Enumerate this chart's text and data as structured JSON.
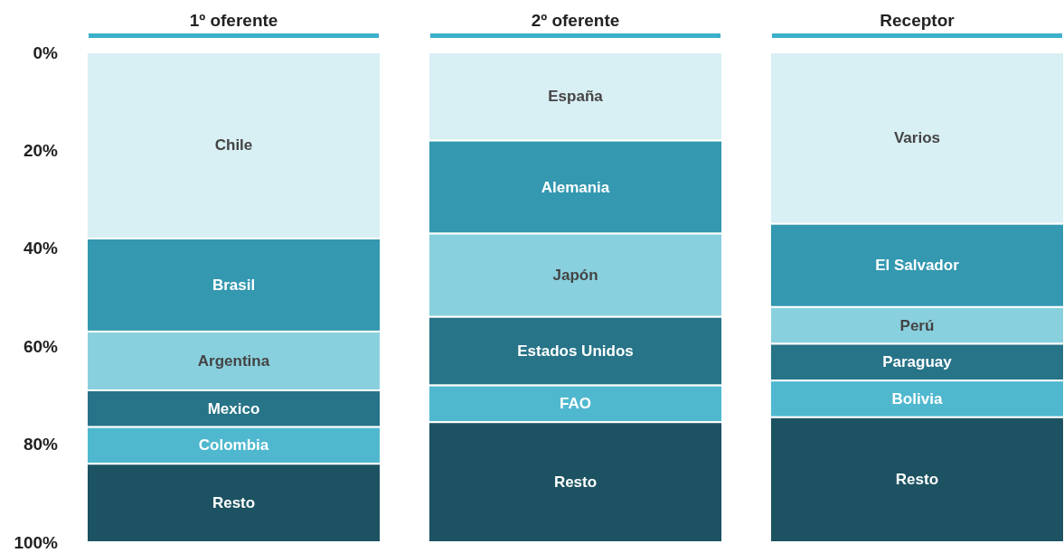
{
  "chart_data": {
    "type": "bar",
    "stacked": true,
    "categories": [
      "1º oferente",
      "2º oferente",
      "Receptor"
    ],
    "ylim": [
      100,
      0
    ],
    "yticks": [
      {
        "value": 0,
        "label": "0%"
      },
      {
        "value": 20,
        "label": "20%"
      },
      {
        "value": 40,
        "label": "40%"
      },
      {
        "value": 60,
        "label": "60%"
      },
      {
        "value": 80,
        "label": "80%"
      },
      {
        "value": 100,
        "label": "100%"
      }
    ],
    "grid": false,
    "series": [
      {
        "color": "#d8eff3",
        "values": [
          38,
          18,
          35
        ],
        "value_labels": [
          "Chile",
          "España",
          "Varios"
        ]
      },
      {
        "color": "#3398b0",
        "values": [
          19,
          19,
          17
        ],
        "value_labels": [
          "Brasil",
          "Alemania",
          "El Salvador"
        ]
      },
      {
        "color": "#89d0de",
        "values": [
          12,
          17,
          7.5
        ],
        "value_labels": [
          "Argentina",
          "Japón",
          "Perú"
        ]
      },
      {
        "color": "#277387",
        "values": [
          7.5,
          14,
          7.5
        ],
        "value_labels": [
          "Mexico",
          "Estados Unidos",
          "Paraguay"
        ]
      },
      {
        "color": "#4fb8cf",
        "values": [
          7.5,
          7.5,
          7.5
        ],
        "value_labels": [
          "Colombia",
          "FAO",
          "Bolivia"
        ]
      },
      {
        "color": "#1c5261",
        "values": [
          16,
          24.5,
          25.5
        ],
        "value_labels": [
          "Resto",
          "Resto",
          "Resto"
        ]
      }
    ]
  }
}
